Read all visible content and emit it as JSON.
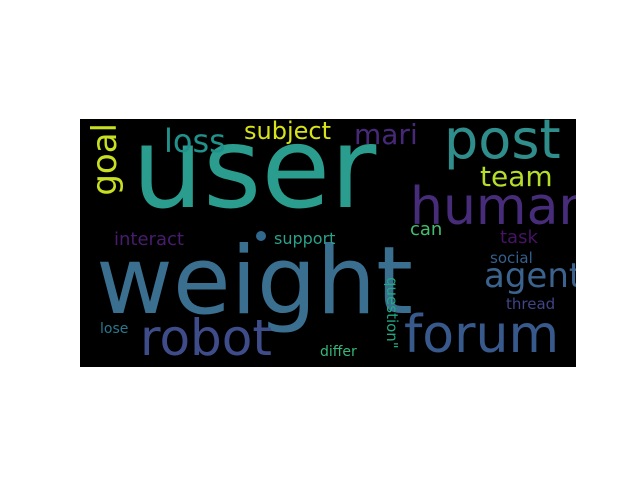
{
  "words": [
    {
      "id": "user",
      "text": "user",
      "color": "#2a9d8e"
    },
    {
      "id": "weight",
      "text": "weight",
      "color": "#3b6f8f"
    },
    {
      "id": "post",
      "text": "post",
      "color": "#2f8e8c"
    },
    {
      "id": "human",
      "text": "human",
      "color": "#472c7a"
    },
    {
      "id": "robot",
      "text": "robot",
      "color": "#3e4c8a"
    },
    {
      "id": "forum",
      "text": "forum",
      "color": "#38598c"
    },
    {
      "id": "agent",
      "text": "agent",
      "color": "#3b638d"
    },
    {
      "id": "goal",
      "text": "goal",
      "color": "#c8e020"
    },
    {
      "id": "loss",
      "text": "loss",
      "color": "#21918c"
    },
    {
      "id": "subject",
      "text": "subject",
      "color": "#d8e219"
    },
    {
      "id": "mari",
      "text": "mari",
      "color": "#482878"
    },
    {
      "id": "team",
      "text": "team",
      "color": "#b5de2b"
    },
    {
      "id": "interact",
      "text": "interact",
      "color": "#481d6f"
    },
    {
      "id": "support",
      "text": "support",
      "color": "#2ba08a"
    },
    {
      "id": "can",
      "text": "can",
      "color": "#44bf70"
    },
    {
      "id": "task",
      "text": "task",
      "color": "#471365"
    },
    {
      "id": "social",
      "text": "social",
      "color": "#355f8d"
    },
    {
      "id": "question",
      "text": "question\"",
      "color": "#22a884"
    },
    {
      "id": "thread",
      "text": "thread",
      "color": "#414487"
    },
    {
      "id": "lose",
      "text": "lose",
      "color": "#2a788e"
    },
    {
      "id": "differ",
      "text": "differ",
      "color": "#35b779"
    }
  ],
  "dot_color": "#31688e"
}
